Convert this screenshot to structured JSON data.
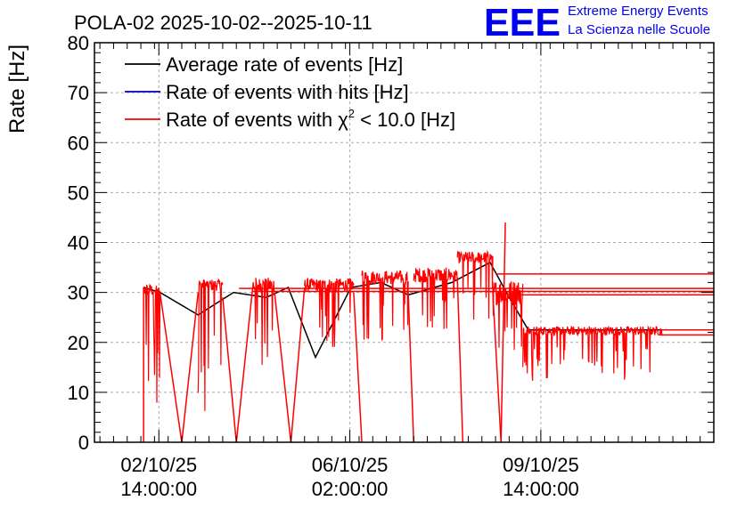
{
  "chart_data": {
    "type": "line",
    "title": "POLA-02 2025-10-02--2025-10-11",
    "ylabel": "Rate [Hz]",
    "xlabel": "",
    "ylim": [
      0,
      80
    ],
    "y_ticks": [
      "0",
      "10",
      "20",
      "30",
      "40",
      "50",
      "60",
      "70",
      "80"
    ],
    "x_ticks": [
      {
        "value": 1.83,
        "line1": "02/10/25",
        "line2": "14:00:00"
      },
      {
        "value": 5.33,
        "line1": "06/10/25",
        "line2": "02:00:00"
      },
      {
        "value": 8.83,
        "line1": "09/10/25",
        "line2": "14:00:00"
      }
    ],
    "xlim": [
      0.65,
      12.0
    ],
    "grid": true,
    "legend_position": "top-left",
    "legend": [
      {
        "label": "Average rate of events [Hz]",
        "color": "#000000"
      },
      {
        "label": "Rate of events with hits [Hz]",
        "color": "#0000cc"
      },
      {
        "label_prefix": "Rate of events with ",
        "label_symbol": "χ",
        "label_sup": "2",
        "label_suffix": " < 10.0 [Hz]",
        "color": "#ff0000"
      }
    ],
    "series": [
      {
        "name": "Average rate of events [Hz]",
        "color": "#000000",
        "x": [
          1.55,
          1.85,
          2.55,
          3.2,
          3.8,
          4.2,
          4.7,
          5.35,
          5.9,
          6.4,
          7.2,
          7.9,
          8.25,
          8.6,
          9.5,
          10.5,
          11.05
        ],
        "y": [
          31,
          30,
          25.5,
          30,
          29,
          31,
          17,
          31,
          32,
          29.5,
          32,
          36,
          29,
          22.5,
          22.5,
          22.5,
          22.5
        ]
      },
      {
        "name": "Rate of events with χ2 < 10.0 [Hz]",
        "color": "#ff0000",
        "segments": [
          {
            "x0": 1.55,
            "x1": 1.85,
            "base": 30.5,
            "noise": 1.2,
            "dips": 10,
            "dipmin": 6
          },
          {
            "x0": 2.55,
            "x1": 3.0,
            "base": 31.5,
            "noise": 1.2,
            "dips": 9,
            "dipmin": 6
          },
          {
            "x0": 3.55,
            "x1": 3.95,
            "base": 31.5,
            "noise": 1.5,
            "dips": 8,
            "dipmin": 14
          },
          {
            "x0": 4.5,
            "x1": 5.4,
            "base": 31.5,
            "noise": 1.3,
            "dips": 14,
            "dipmin": 18
          },
          {
            "x0": 5.55,
            "x1": 6.4,
            "base": 33.0,
            "noise": 1.4,
            "dips": 12,
            "dipmin": 20
          },
          {
            "x0": 6.5,
            "x1": 7.3,
            "base": 33.5,
            "noise": 1.5,
            "dips": 12,
            "dipmin": 20
          },
          {
            "x0": 7.3,
            "x1": 7.95,
            "base": 37.0,
            "noise": 1.2,
            "dips": 8,
            "dipmin": 24
          },
          {
            "x0": 7.95,
            "x1": 8.5,
            "base": 30.0,
            "noise": 2.5,
            "dips": 10,
            "dipmin": 18
          },
          {
            "x0": 8.5,
            "x1": 11.05,
            "base": 22.3,
            "noise": 0.9,
            "dips": 40,
            "dipmin": 12
          }
        ],
        "extra_lines": [
          {
            "x": [
              1.85,
              2.25
            ],
            "y": [
              30,
              0
            ]
          },
          {
            "x": [
              2.25,
              2.55
            ],
            "y": [
              0,
              30
            ]
          },
          {
            "x": [
              3.0,
              3.25
            ],
            "y": [
              29,
              0
            ]
          },
          {
            "x": [
              3.25,
              3.55
            ],
            "y": [
              0,
              31
            ]
          },
          {
            "x": [
              3.95,
              4.25
            ],
            "y": [
              30,
              0
            ]
          },
          {
            "x": [
              4.25,
              4.5
            ],
            "y": [
              0,
              31
            ]
          },
          {
            "x": [
              5.4,
              5.55
            ],
            "y": [
              30,
              0
            ]
          },
          {
            "x": [
              6.4,
              6.5
            ],
            "y": [
              30,
              0
            ]
          },
          {
            "x": [
              7.3,
              7.4
            ],
            "y": [
              33,
              0
            ]
          },
          {
            "x": [
              7.95,
              8.1
            ],
            "y": [
              30,
              0
            ]
          },
          {
            "x": [
              8.1,
              8.18
            ],
            "y": [
              0,
              44
            ]
          },
          {
            "x": [
              1.55,
              1.55
            ],
            "y": [
              0,
              31
            ]
          },
          {
            "x": [
              3.3,
              12.0
            ],
            "y": [
              30.8,
              30.8
            ]
          },
          {
            "x": [
              3.55,
              12.0
            ],
            "y": [
              30.2,
              30.2
            ]
          },
          {
            "x": [
              8.0,
              12.0
            ],
            "y": [
              33.7,
              33.7
            ]
          },
          {
            "x": [
              8.25,
              12.0
            ],
            "y": [
              29.5,
              29.5
            ]
          },
          {
            "x": [
              11.0,
              12.0
            ],
            "y": [
              22.5,
              22.5
            ]
          },
          {
            "x": [
              11.0,
              12.0
            ],
            "y": [
              21.5,
              21.5
            ]
          }
        ]
      }
    ]
  },
  "logo": {
    "letters": "EEE",
    "line1": "Extreme Energy Events",
    "line2": "La Scienza nelle Scuole",
    "color": "#0000ee"
  }
}
